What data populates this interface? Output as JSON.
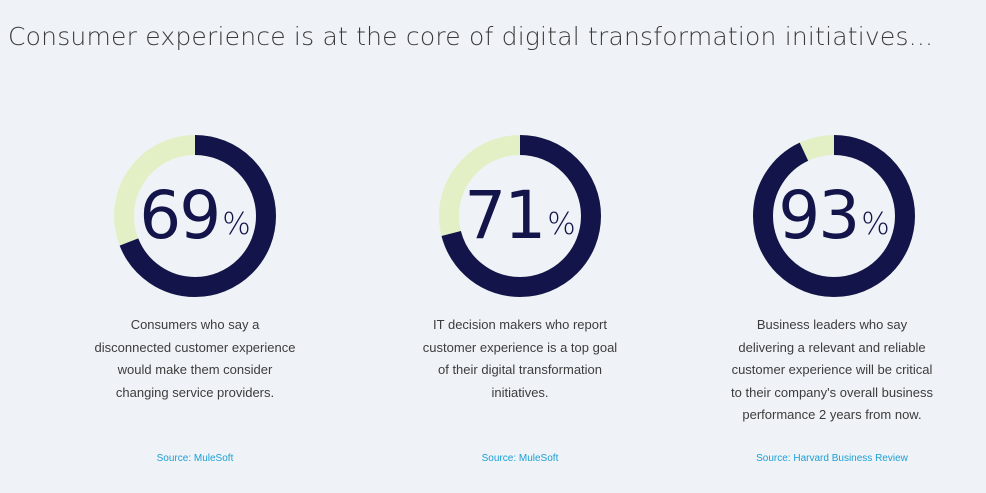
{
  "title": "Consumer experience is at the core of digital transformation initiatives...",
  "colors": {
    "filled": "#12144a",
    "track": "#e3f0c6",
    "source": "#1b9fd6"
  },
  "chart_data": [
    {
      "type": "pie",
      "value": 69,
      "unit": "%",
      "description": "Consumers who say a disconnected customer experience would make them consider changing service providers.",
      "description_lines": [
        "Consumers who say a",
        "disconnected customer experience",
        "would make them consider",
        "changing service providers."
      ],
      "source": "Source: MuleSoft"
    },
    {
      "type": "pie",
      "value": 71,
      "unit": "%",
      "description": "IT decision makers who report customer experience is a top goal of their digital transformation initiatives.",
      "description_lines": [
        "IT decision makers who report",
        "customer experience is a top goal",
        "of their digital transformation",
        "initiatives."
      ],
      "source": "Source: MuleSoft"
    },
    {
      "type": "pie",
      "value": 93,
      "unit": "%",
      "description": "Business leaders who say delivering a relevant and reliable customer experience will be critical to their company's overall business performance 2 years from now.",
      "description_lines": [
        "Business leaders who say",
        "delivering a relevant and reliable",
        "customer experience will be critical",
        "to their company's overall business",
        "performance 2 years from now."
      ],
      "source": "Source: Harvard Business Review"
    }
  ]
}
